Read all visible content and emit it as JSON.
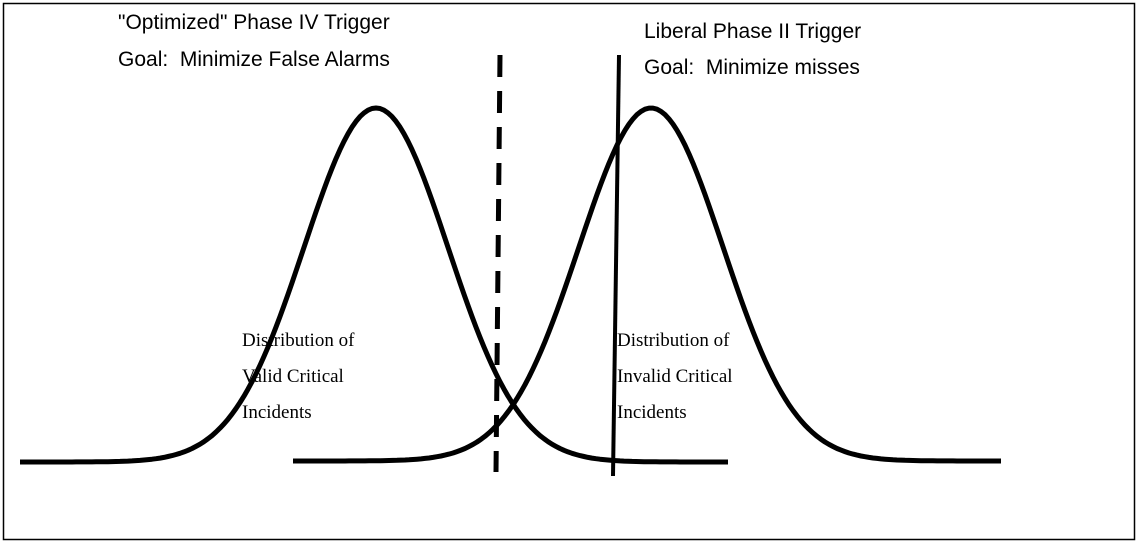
{
  "triggers": [
    {
      "title": "\"Optimized\" Phase IV Trigger",
      "goal": "Goal:  Minimize False Alarms"
    },
    {
      "title": "Liberal Phase II Trigger",
      "goal": "Goal:  Minimize misses"
    }
  ],
  "distributions": [
    {
      "lines": [
        "Distribution of",
        "Valid Critical",
        "Incidents"
      ]
    },
    {
      "lines": [
        "Distribution of",
        "Invalid Critical",
        "Incidents"
      ]
    }
  ]
}
